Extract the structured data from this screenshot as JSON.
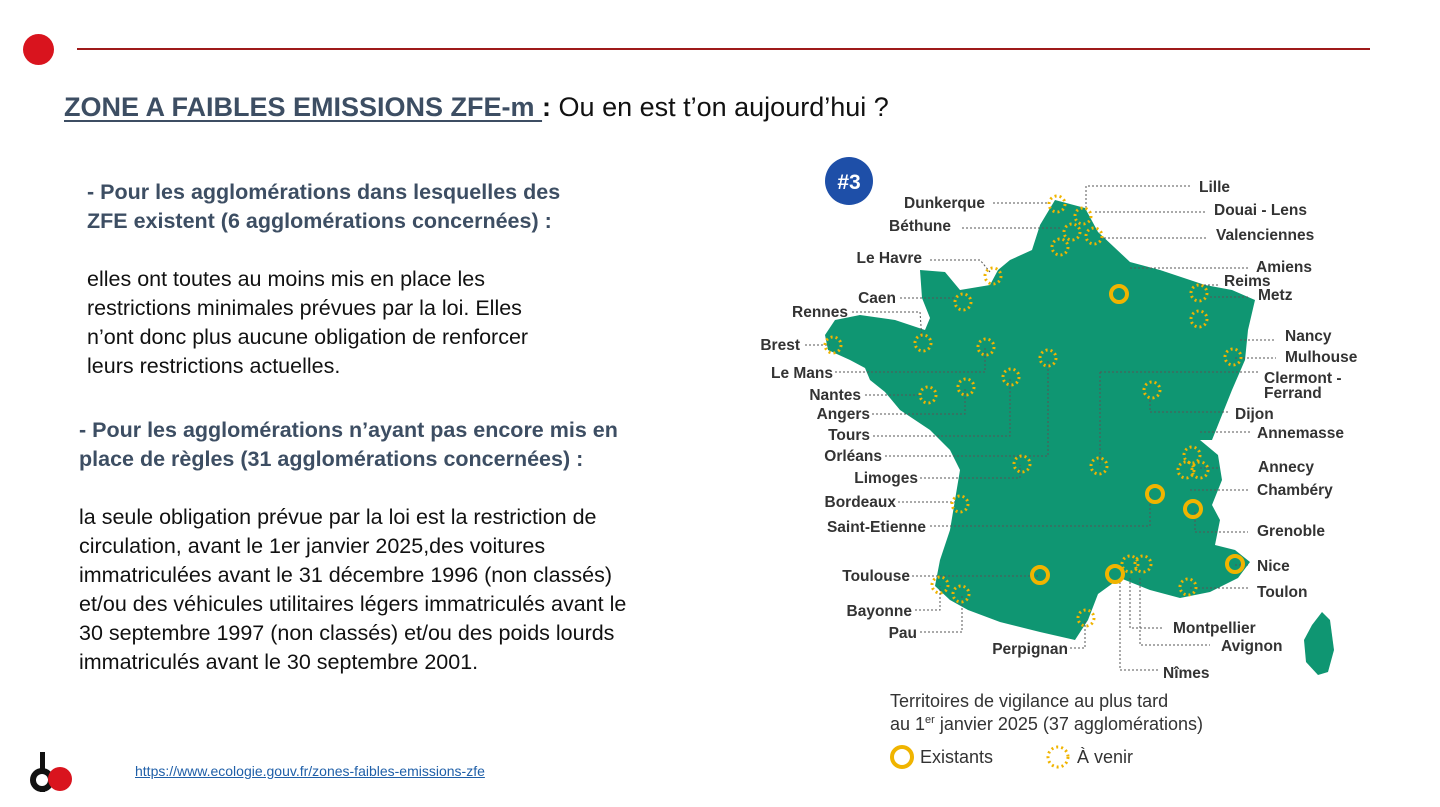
{
  "colors": {
    "accent_red": "#d9141e",
    "rule_dark_red": "#9e1a1a",
    "title_slate": "#3d4e63",
    "map_green": "#0f9672",
    "marker_yellow": "#f0b400",
    "label_dark": "#333333",
    "link_blue": "#1f5fa8",
    "badge_blue": "#1e4fa8"
  },
  "header": {
    "title_main": "ZONE A FAIBLES EMISSIONS ZFE-m ",
    "title_colon": ":",
    "title_rest": " Ou en est t’on aujourd’hui ?"
  },
  "section1": {
    "heading_line1": "- Pour les agglomérations dans lesquelles des",
    "heading_line2": "ZFE existent (6 agglomérations concernées) :",
    "body_lines": [
      "elles ont toutes au moins mis en place les",
      "restrictions minimales prévues par la loi. Elles",
      "n’ont donc plus aucune obligation de renforcer",
      "leurs restrictions actuelles."
    ]
  },
  "section2": {
    "heading_line1": "- Pour les agglomérations n’ayant pas encore mis en",
    "heading_line2": "place de règles (31 agglomérations concernées) :",
    "body_lines": [
      "la seule obligation prévue par la loi est la restriction de",
      "circulation, avant le 1er janvier 2025,des voitures",
      "immatriculées avant le 31 décembre 1996 (non classés)",
      "et/ou des véhicules utilitaires légers immatriculés avant le",
      "30 septembre 1997 (non classés) et/ou des poids lourds",
      "immatriculés avant le 30 septembre 2001."
    ]
  },
  "map": {
    "badge": "#3",
    "cities": {
      "lille": "Lille",
      "dunkerque": "Dunkerque",
      "douai_lens": "Douai - Lens",
      "bethune": "Béthune",
      "valenciennes": "Valenciennes",
      "le_havre": "Le Havre",
      "amiens": "Amiens",
      "reims": "Reims",
      "caen": "Caen",
      "metz": "Metz",
      "rennes": "Rennes",
      "nancy": "Nancy",
      "brest": "Brest",
      "mulhouse": "Mulhouse",
      "le_mans": "Le Mans",
      "clermont": "Clermont -",
      "ferrand": "Ferrand",
      "nantes": "Nantes",
      "dijon": "Dijon",
      "angers": "Angers",
      "annemasse": "Annemasse",
      "tours": "Tours",
      "orleans": "Orléans",
      "annecy": "Annecy",
      "limoges": "Limoges",
      "chambery": "Chambéry",
      "bordeaux": "Bordeaux",
      "saint_etienne": "Saint-Etienne",
      "grenoble": "Grenoble",
      "nice": "Nice",
      "toulouse": "Toulouse",
      "toulon": "Toulon",
      "bayonne": "Bayonne",
      "montpellier": "Montpellier",
      "pau": "Pau",
      "avignon": "Avignon",
      "perpignan": "Perpignan",
      "nimes": "Nîmes"
    },
    "legend": {
      "line1": "Territoires de vigilance au plus tard",
      "line2_prefix": "au 1",
      "line2_sup": "er",
      "line2_suffix": " janvier 2025 (37 agglomérations)",
      "existing": "Existants",
      "upcoming": "À venir"
    }
  },
  "footer": {
    "link_text": "https://www.ecologie.gouv.fr/zones-faibles-emissions-zfe"
  }
}
